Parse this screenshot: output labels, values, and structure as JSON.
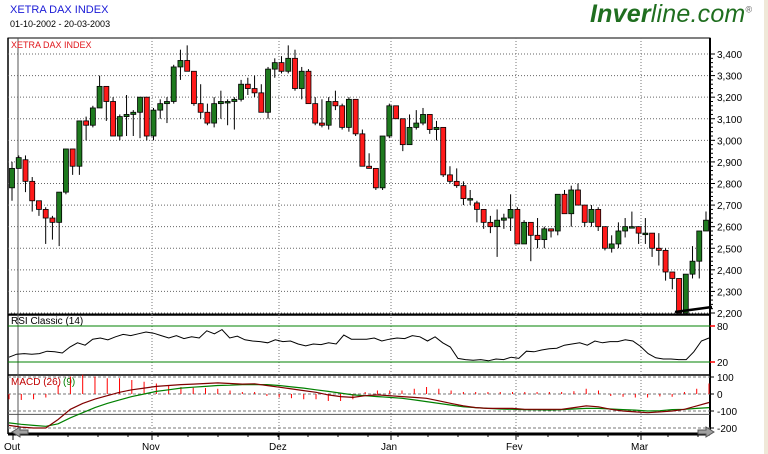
{
  "header": {
    "title": "XETRA DAX INDEX",
    "date_range": "01-10-2002 - 20-03-2003",
    "brand_bold": "Inver",
    "brand_rest": "line.com",
    "brand_reg": "®"
  },
  "colors": {
    "up": "#1e7a1e",
    "down": "#ff1a1a",
    "title": "#1a1ad6",
    "panel_label": "#e0161b",
    "signal_green": "#008000",
    "macd_line": "#800000",
    "rsi_line": "#000000",
    "grid": "#888888"
  },
  "panels": {
    "price_label": "XETRA DAX INDEX",
    "rsi_label": "RSI Classic (14)",
    "macd_label": "MACD (26)",
    "macd_signal_label": "(9)"
  },
  "chart_data": [
    {
      "type": "candlestick",
      "title": "XETRA DAX INDEX",
      "subtitle": "01-10-2002 - 20-03-2003",
      "xlabel": "",
      "ylabel": "",
      "x_ticks": [
        "Out",
        "Nov",
        "Dez",
        "Jan",
        "Fev",
        "Mar"
      ],
      "y_ticks": [
        2200,
        2300,
        2400,
        2500,
        2600,
        2700,
        2800,
        2900,
        3000,
        3100,
        3200,
        3300,
        3400
      ],
      "y_tick_labels": [
        "2,200",
        "2,300",
        "2,400",
        "2,500",
        "2,600",
        "2,700",
        "2,800",
        "2,900",
        "3,000",
        "3,100",
        "3,200",
        "3,300",
        "3,400"
      ],
      "ylim": [
        2180,
        3480
      ],
      "grid": true,
      "candles_ohlc": [
        [
          2780,
          2900,
          2720,
          2870
        ],
        [
          2870,
          2930,
          2870,
          2920
        ],
        [
          2910,
          2930,
          2760,
          2810
        ],
        [
          2810,
          2830,
          2670,
          2720
        ],
        [
          2720,
          2700,
          2650,
          2680
        ],
        [
          2680,
          2690,
          2520,
          2640
        ],
        [
          2640,
          2650,
          2540,
          2620
        ],
        [
          2620,
          2760,
          2510,
          2760
        ],
        [
          2760,
          2960,
          2750,
          2960
        ],
        [
          2960,
          2960,
          2840,
          2880
        ],
        [
          2880,
          3090,
          2840,
          3090
        ],
        [
          3090,
          3110,
          3000,
          3070
        ],
        [
          3070,
          3160,
          3060,
          3150
        ],
        [
          3150,
          3300,
          3150,
          3250
        ],
        [
          3250,
          3230,
          3090,
          3180
        ],
        [
          3180,
          3200,
          3020,
          3020
        ],
        [
          3020,
          3120,
          3000,
          3110
        ],
        [
          3110,
          3210,
          3020,
          3120
        ],
        [
          3120,
          3140,
          3020,
          3130
        ],
        [
          3130,
          3200,
          3010,
          3200
        ],
        [
          3200,
          3190,
          3000,
          3020
        ],
        [
          3020,
          3150,
          3000,
          3140
        ],
        [
          3140,
          3190,
          3100,
          3170
        ],
        [
          3170,
          3200,
          3080,
          3180
        ],
        [
          3180,
          3350,
          3170,
          3340
        ],
        [
          3340,
          3420,
          3280,
          3370
        ],
        [
          3370,
          3440,
          3320,
          3320
        ],
        [
          3320,
          3320,
          3160,
          3170
        ],
        [
          3170,
          3260,
          3100,
          3130
        ],
        [
          3130,
          3170,
          3070,
          3080
        ],
        [
          3080,
          3200,
          3060,
          3170
        ],
        [
          3170,
          3230,
          3100,
          3180
        ],
        [
          3180,
          3190,
          3070,
          3180
        ],
        [
          3180,
          3200,
          3050,
          3190
        ],
        [
          3190,
          3280,
          3180,
          3260
        ],
        [
          3260,
          3290,
          3210,
          3240
        ],
        [
          3240,
          3300,
          3200,
          3220
        ],
        [
          3220,
          3260,
          3130,
          3130
        ],
        [
          3130,
          3340,
          3100,
          3330
        ],
        [
          3330,
          3380,
          3290,
          3360
        ],
        [
          3360,
          3390,
          3310,
          3320
        ],
        [
          3320,
          3440,
          3310,
          3380
        ],
        [
          3380,
          3420,
          3230,
          3240
        ],
        [
          3240,
          3340,
          3190,
          3320
        ],
        [
          3320,
          3330,
          3170,
          3170
        ],
        [
          3170,
          3200,
          3070,
          3080
        ],
        [
          3080,
          3190,
          3060,
          3070
        ],
        [
          3070,
          3200,
          3050,
          3180
        ],
        [
          3180,
          3230,
          3140,
          3160
        ],
        [
          3160,
          3170,
          3050,
          3060
        ],
        [
          3060,
          3200,
          3040,
          3190
        ],
        [
          3190,
          3180,
          3020,
          3030
        ],
        [
          3030,
          3050,
          2890,
          2880
        ],
        [
          2880,
          2940,
          2870,
          2870
        ],
        [
          2870,
          2830,
          2770,
          2780
        ],
        [
          2780,
          3010,
          2770,
          3020
        ],
        [
          3020,
          3170,
          3010,
          3160
        ],
        [
          3160,
          3160,
          3100,
          3100
        ],
        [
          3100,
          3100,
          2950,
          2980
        ],
        [
          2980,
          3120,
          2980,
          3060
        ],
        [
          3060,
          3140,
          3050,
          3080
        ],
        [
          3080,
          3150,
          3070,
          3120
        ],
        [
          3120,
          3120,
          3030,
          3050
        ],
        [
          3050,
          3090,
          3000,
          3060
        ],
        [
          3060,
          2990,
          2830,
          2840
        ],
        [
          2840,
          2880,
          2800,
          2810
        ],
        [
          2810,
          2870,
          2780,
          2790
        ],
        [
          2790,
          2810,
          2700,
          2730
        ],
        [
          2730,
          2770,
          2700,
          2730
        ],
        [
          2710,
          2720,
          2620,
          2680
        ],
        [
          2680,
          2640,
          2590,
          2620
        ],
        [
          2620,
          2650,
          2570,
          2600
        ],
        [
          2600,
          2680,
          2460,
          2630
        ],
        [
          2630,
          2660,
          2590,
          2640
        ],
        [
          2640,
          2750,
          2580,
          2680
        ],
        [
          2680,
          2690,
          2550,
          2520
        ],
        [
          2520,
          2630,
          2540,
          2620
        ],
        [
          2620,
          2610,
          2440,
          2560
        ],
        [
          2560,
          2640,
          2500,
          2540
        ],
        [
          2540,
          2600,
          2500,
          2590
        ],
        [
          2590,
          2570,
          2550,
          2580
        ],
        [
          2580,
          2750,
          2560,
          2750
        ],
        [
          2750,
          2770,
          2660,
          2660
        ],
        [
          2660,
          2790,
          2600,
          2770
        ],
        [
          2770,
          2800,
          2700,
          2700
        ],
        [
          2700,
          2680,
          2600,
          2620
        ],
        [
          2620,
          2700,
          2600,
          2680
        ],
        [
          2680,
          2690,
          2580,
          2600
        ],
        [
          2600,
          2580,
          2490,
          2500
        ],
        [
          2500,
          2560,
          2480,
          2520
        ],
        [
          2520,
          2620,
          2500,
          2580
        ],
        [
          2580,
          2640,
          2550,
          2600
        ],
        [
          2600,
          2670,
          2600,
          2600
        ],
        [
          2600,
          2600,
          2520,
          2570
        ],
        [
          2570,
          2640,
          2520,
          2570
        ],
        [
          2570,
          2560,
          2460,
          2500
        ],
        [
          2500,
          2570,
          2420,
          2490
        ],
        [
          2490,
          2500,
          2350,
          2390
        ],
        [
          2390,
          2380,
          2310,
          2360
        ],
        [
          2360,
          2330,
          2200,
          2200
        ],
        [
          2200,
          2380,
          2210,
          2380
        ],
        [
          2380,
          2510,
          2360,
          2440
        ],
        [
          2440,
          2580,
          2360,
          2580
        ],
        [
          2580,
          2670,
          2580,
          2630
        ]
      ],
      "last_values_approx": {
        "close": 2630,
        "high": 2680,
        "low": 2360
      }
    },
    {
      "type": "line",
      "title": "RSI Classic (14)",
      "y_ticks": [
        20,
        80
      ],
      "ylim": [
        0,
        100
      ],
      "reference_lines": [
        20,
        80
      ],
      "values_approx": [
        28,
        33,
        34,
        33,
        34,
        38,
        37,
        35,
        45,
        52,
        48,
        58,
        60,
        57,
        62,
        66,
        64,
        67,
        70,
        68,
        64,
        60,
        64,
        59,
        62,
        60,
        72,
        67,
        74,
        60,
        63,
        57,
        55,
        54,
        52,
        57,
        54,
        55,
        50,
        47,
        50,
        49,
        52,
        50,
        65,
        58,
        58,
        58,
        60,
        55,
        58,
        60,
        59,
        64,
        62,
        55,
        62,
        52,
        45,
        26,
        24,
        23,
        24,
        22,
        25,
        24,
        28,
        26,
        38,
        37,
        40,
        42,
        43,
        48,
        50,
        52,
        48,
        55,
        52,
        54,
        54,
        57,
        55,
        46,
        34,
        27,
        25,
        25,
        24,
        24,
        37,
        55,
        60
      ]
    },
    {
      "type": "line",
      "title": "MACD (26) (9)",
      "y_ticks": [
        100,
        0,
        -100,
        -200
      ],
      "ylim": [
        -215,
        115
      ],
      "series": [
        {
          "name": "MACD",
          "color": "#800000",
          "values_approx": [
            -185,
            -195,
            -200,
            -200,
            -150,
            -90,
            -55,
            -30,
            -10,
            10,
            25,
            35,
            45,
            50,
            55,
            58,
            62,
            65,
            62,
            58,
            60,
            50,
            40,
            30,
            20,
            10,
            -5,
            -15,
            -20,
            -10,
            -5,
            -10,
            -15,
            -20,
            -25,
            -40,
            -55,
            -70,
            -80,
            -85,
            -85,
            -85,
            -90,
            -90,
            -90,
            -90,
            -80,
            -70,
            -75,
            -90,
            -100,
            -105,
            -110,
            -105,
            -100,
            -90,
            -70,
            -50
          ]
        },
        {
          "name": "Signal (9)",
          "color": "#008000",
          "values_approx": [
            -170,
            -178,
            -185,
            -190,
            -175,
            -140,
            -110,
            -80,
            -55,
            -35,
            -15,
            0,
            15,
            25,
            35,
            40,
            45,
            50,
            52,
            55,
            55,
            55,
            50,
            42,
            35,
            25,
            15,
            5,
            -5,
            -10,
            -15,
            -20,
            -25,
            -35,
            -45,
            -55,
            -65,
            -75,
            -80,
            -85,
            -88,
            -90,
            -92,
            -93,
            -94,
            -92,
            -88,
            -85,
            -85,
            -88,
            -92,
            -95,
            -100,
            -98,
            -92,
            -90,
            -85,
            -80
          ]
        },
        {
          "name": "Histogram",
          "color": "#ff0000",
          "values_approx": []
        }
      ]
    }
  ],
  "x_axis": {
    "months": [
      {
        "label": "Out",
        "x": 13
      },
      {
        "label": "Nov",
        "x": 152
      },
      {
        "label": "Dez",
        "x": 279
      },
      {
        "label": "Jan",
        "x": 391
      },
      {
        "label": "Fev",
        "x": 516
      },
      {
        "label": "Mar",
        "x": 641
      }
    ]
  },
  "y_axis": {
    "price_labels": [
      "3,400",
      "3,300",
      "3,200",
      "3,100",
      "3,000",
      "2,900",
      "2,800",
      "2,700",
      "2,600",
      "2,500",
      "2,400",
      "2,300",
      "2,200"
    ],
    "rsi_labels": [
      "80",
      "20"
    ],
    "macd_labels": [
      "100",
      "0",
      "-100",
      "-200"
    ]
  }
}
